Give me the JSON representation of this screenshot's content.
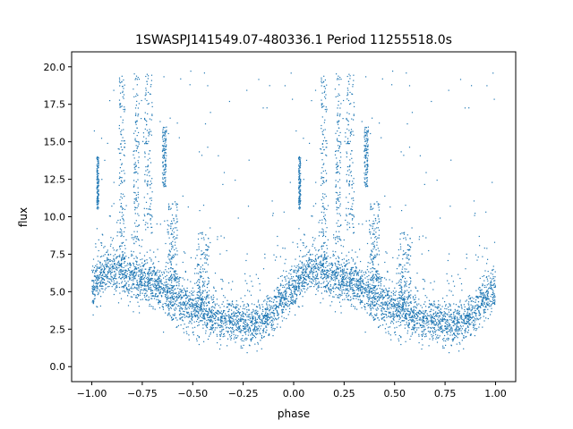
{
  "chart_data": {
    "type": "scatter",
    "title": "1SWASPJ141549.07-480336.1 Period 11255518.0s",
    "xlabel": "phase",
    "ylabel": "flux",
    "xlim": [
      -1.1,
      1.1
    ],
    "ylim": [
      -1.0,
      21.0
    ],
    "xticks": [
      -1.0,
      -0.75,
      -0.5,
      -0.25,
      0.0,
      0.25,
      0.5,
      0.75,
      1.0
    ],
    "xtick_labels": [
      "−1.00",
      "−0.75",
      "−0.50",
      "−0.25",
      "0.00",
      "0.25",
      "0.50",
      "0.75",
      "1.00"
    ],
    "yticks": [
      0.0,
      2.5,
      5.0,
      7.5,
      10.0,
      12.5,
      15.0,
      17.5,
      20.0
    ],
    "ytick_labels": [
      "0.0",
      "2.5",
      "5.0",
      "7.5",
      "10.0",
      "12.5",
      "15.0",
      "17.5",
      "20.0"
    ],
    "grid": false,
    "legend": "none",
    "point_color": "#1f77b4",
    "series": [
      {
        "phase_range": [
          -1.0,
          1.0
        ],
        "folded_period_profile": {
          "phase": [
            0.0,
            0.05,
            0.1,
            0.15,
            0.2,
            0.25,
            0.3,
            0.35,
            0.4,
            0.45,
            0.5,
            0.55,
            0.6,
            0.65,
            0.7,
            0.75,
            0.8,
            0.85,
            0.9,
            0.95,
            1.0
          ],
          "median_flux": [
            5.2,
            6.0,
            6.6,
            6.3,
            6.0,
            5.8,
            5.5,
            5.1,
            4.7,
            4.3,
            3.9,
            3.6,
            3.3,
            3.1,
            3.0,
            2.9,
            2.8,
            3.0,
            3.6,
            4.6,
            5.2
          ],
          "spread": [
            0.8,
            0.8,
            0.9,
            0.9,
            0.9,
            0.9,
            0.9,
            0.9,
            0.9,
            0.9,
            0.9,
            0.9,
            0.8,
            0.8,
            0.8,
            0.8,
            0.8,
            0.8,
            0.8,
            0.8,
            0.8
          ]
        },
        "flares": [
          {
            "phase": 0.03,
            "width": 0.01,
            "flux_range": [
              10.5,
              14.0
            ]
          },
          {
            "phase": 0.15,
            "width": 0.03,
            "flux_range": [
              7.0,
              19.5
            ]
          },
          {
            "phase": 0.22,
            "width": 0.03,
            "flux_range": [
              8.0,
              20.0
            ]
          },
          {
            "phase": 0.28,
            "width": 0.04,
            "flux_range": [
              8.5,
              19.5
            ]
          },
          {
            "phase": 0.36,
            "width": 0.02,
            "flux_range": [
              12.0,
              16.0
            ]
          },
          {
            "phase": 0.4,
            "width": 0.05,
            "flux_range": [
              5.0,
              11.0
            ]
          },
          {
            "phase": 0.55,
            "width": 0.06,
            "flux_range": [
              4.0,
              9.0
            ]
          }
        ]
      }
    ]
  }
}
